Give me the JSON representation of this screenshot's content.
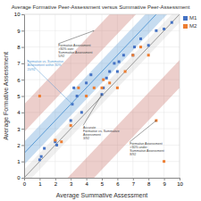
{
  "chart_data": {
    "type": "scatter",
    "title": "Average Formative Peer-Assessment versus Summative Peer-Assessment",
    "x_label": "Average Summative Assessment",
    "y_label": "Average Formative Assessment",
    "xlim": [
      0,
      10
    ],
    "ylim": [
      0,
      10
    ],
    "xticks": [
      0,
      1,
      2,
      3,
      4,
      5,
      6,
      7,
      8,
      9,
      10
    ],
    "yticks": [
      0,
      1,
      2,
      3,
      4,
      5,
      6,
      7,
      8,
      9,
      10
    ],
    "grid": true,
    "legend": "right",
    "series": [
      {
        "name": "M1",
        "color": "#4472c4",
        "marker": "square",
        "x": [
          1.0,
          1.1,
          1.3,
          2.0,
          2.1,
          3.0,
          3.1,
          3.2,
          3.4,
          3.7,
          4.0,
          4.3,
          5.0,
          5.1,
          5.3,
          5.5,
          5.8,
          6.0,
          6.1,
          6.4,
          7.0,
          7.1,
          7.5,
          8.0,
          8.5,
          9.0,
          9.5
        ],
        "values": [
          1.1,
          1.3,
          1.8,
          2.2,
          2.0,
          3.5,
          4.5,
          5.5,
          5.0,
          4.0,
          5.8,
          6.3,
          5.1,
          5.5,
          6.1,
          6.5,
          7.0,
          6.5,
          7.1,
          7.5,
          7.5,
          8.0,
          8.5,
          8.1,
          9.0,
          9.1,
          9.5
        ]
      },
      {
        "name": "M2",
        "color": "#ed7d31",
        "marker": "square",
        "x": [
          1.0,
          2.0,
          2.4,
          3.0,
          3.5,
          4.0,
          4.5,
          5.0,
          5.1,
          5.5,
          6.0,
          6.5,
          7.0,
          7.5,
          8.0,
          8.5,
          9.0
        ],
        "values": [
          5.0,
          2.3,
          2.2,
          3.2,
          5.5,
          5.0,
          5.5,
          5.5,
          6.0,
          5.8,
          5.5,
          6.5,
          7.5,
          8.0,
          7.5,
          3.5,
          1.0
        ]
      }
    ],
    "bands": [
      {
        "lo": 2.8,
        "hi": 4.5,
        "color": "#c9736b"
      },
      {
        "lo": -4.5,
        "hi": -2.8,
        "color": "#c9736b"
      },
      {
        "lo": 0.8,
        "hi": 2.2,
        "color": "#5b9bd5"
      },
      {
        "lo": -0.5,
        "hi": 0.5,
        "color": "#d0d0d0"
      }
    ],
    "lines": [
      {
        "offset": 1.5,
        "color": "#5b9bd5"
      },
      {
        "offset": 0,
        "color": "#999999"
      }
    ],
    "annotations": [
      {
        "text": "Formative Assessment\n>30% over\nSummative Assessment\n5/92",
        "x": 4.5,
        "y": 9.0,
        "text_x": 2.2,
        "text_y": 8.2,
        "color": "#444444"
      },
      {
        "text": "Formative vs. Summative\nAssessment within 30%\n20/92",
        "x": 3.1,
        "y": 4.5,
        "text_x": 0.2,
        "text_y": 7.2,
        "color": "#5b9bd5"
      },
      {
        "text": "Accurate\nFormative vs. Summative\nAssessment\n3/92",
        "x": 5.0,
        "y": 5.1,
        "text_x": 3.8,
        "text_y": 3.2,
        "color": "#444444"
      },
      {
        "text": "Formative Assessment\n>30% under\nSummative Assessment\n8/92",
        "x": 8.5,
        "y": 3.5,
        "text_x": 6.8,
        "text_y": 2.2,
        "color": "#444444"
      }
    ]
  }
}
